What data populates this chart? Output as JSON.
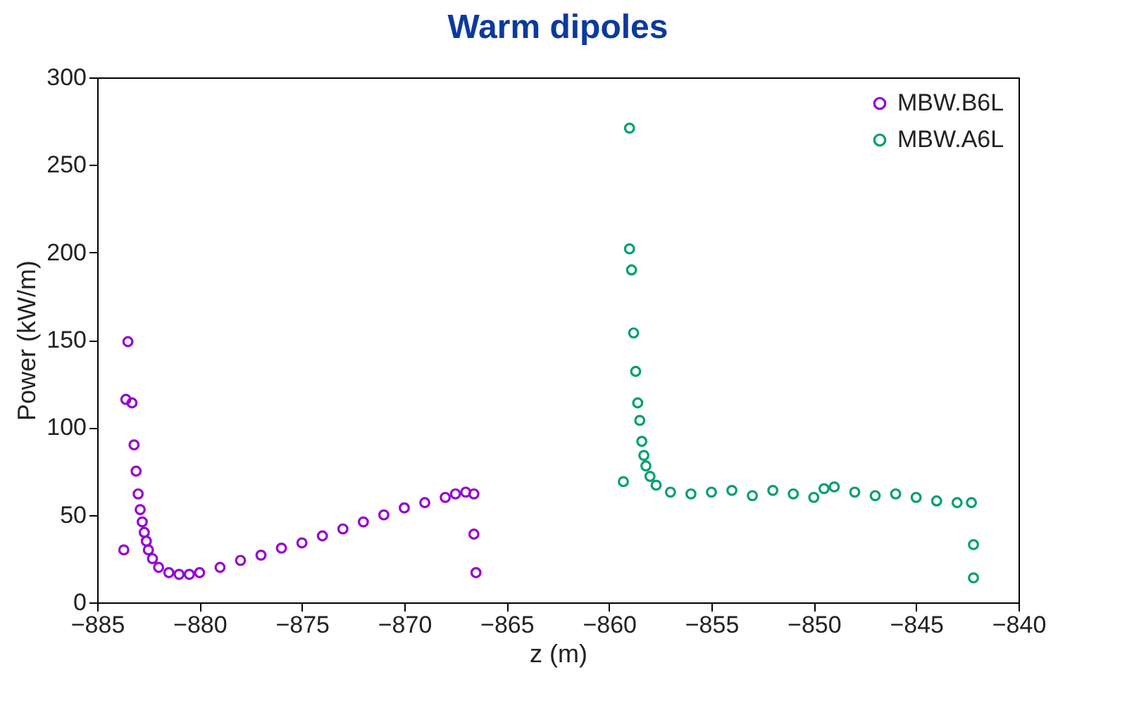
{
  "chart_data": {
    "type": "scatter",
    "title": "Warm dipoles",
    "xlabel": "z (m)",
    "ylabel": "Power (kW/m)",
    "xlim": [
      -885,
      -840
    ],
    "xticks": [
      -885,
      -880,
      -875,
      -870,
      -865,
      -860,
      -855,
      -850,
      -845,
      -840
    ],
    "ylim": [
      0,
      300
    ],
    "yticks": [
      0,
      50,
      100,
      150,
      200,
      250,
      300
    ],
    "grid": false,
    "legend": "top right",
    "marker": "circle",
    "series": [
      {
        "name": "MBW.B6L",
        "color": "#9400d3",
        "x": [
          -883.7,
          -883.5,
          -883.6,
          -883.3,
          -883.2,
          -883.1,
          -883.0,
          -882.9,
          -882.8,
          -882.7,
          -882.6,
          -882.5,
          -882.3,
          -882.0,
          -881.5,
          -881,
          -880.5,
          -880,
          -879,
          -878,
          -877,
          -876,
          -875,
          -874,
          -873,
          -872,
          -871,
          -870,
          -869,
          -868,
          -867.5,
          -867,
          -866.6,
          -866.6,
          -866.5
        ],
        "values": [
          30,
          149,
          116,
          114,
          90,
          75,
          62,
          53,
          46,
          40,
          35,
          30,
          25,
          20,
          17,
          16,
          16,
          17,
          20,
          24,
          27,
          31,
          34,
          38,
          42,
          46,
          50,
          54,
          57,
          60,
          62,
          63,
          62,
          39,
          17
        ]
      },
      {
        "name": "MBW.A6L",
        "color": "#009e73",
        "x": [
          -859.3,
          -859.0,
          -859.0,
          -858.9,
          -858.8,
          -858.7,
          -858.6,
          -858.5,
          -858.4,
          -858.3,
          -858.2,
          -858.0,
          -857.7,
          -857,
          -856,
          -855,
          -854,
          -853,
          -852,
          -851,
          -850,
          -849.5,
          -849,
          -848,
          -847,
          -846,
          -845,
          -844,
          -843,
          -842.3,
          -842.2,
          -842.2
        ],
        "values": [
          69,
          271,
          202,
          190,
          154,
          132,
          114,
          104,
          92,
          84,
          78,
          72,
          67,
          63,
          62,
          63,
          64,
          61,
          64,
          62,
          60,
          65,
          66,
          63,
          61,
          62,
          60,
          58,
          57,
          57,
          33,
          14
        ]
      }
    ]
  }
}
